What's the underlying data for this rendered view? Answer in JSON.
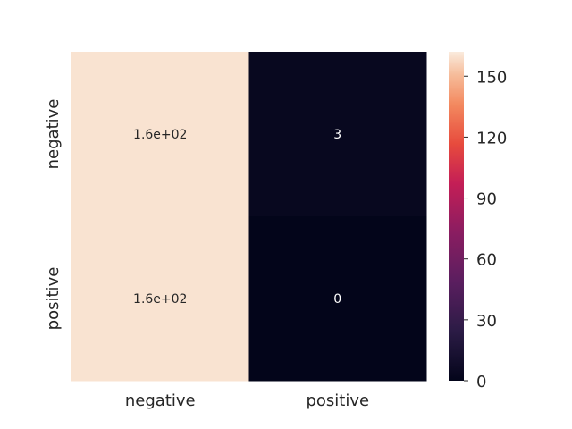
{
  "chart_data": {
    "type": "heatmap",
    "title": "",
    "xlabel": "",
    "ylabel": "",
    "x_categories": [
      "negative",
      "positive"
    ],
    "y_categories": [
      "negative",
      "positive"
    ],
    "values": [
      [
        160,
        3
      ],
      [
        160,
        0
      ]
    ],
    "annotations": [
      [
        "1.6e+02",
        "3"
      ],
      [
        "1.6e+02",
        "0"
      ]
    ],
    "colorbar": {
      "range": [
        0,
        162
      ],
      "ticks": [
        0,
        30,
        60,
        90,
        120,
        150
      ],
      "tick_labels": [
        "0",
        "30",
        "60",
        "90",
        "120",
        "150"
      ],
      "colormap": "rocket"
    },
    "grid": false,
    "legend": "colorbar-right"
  }
}
